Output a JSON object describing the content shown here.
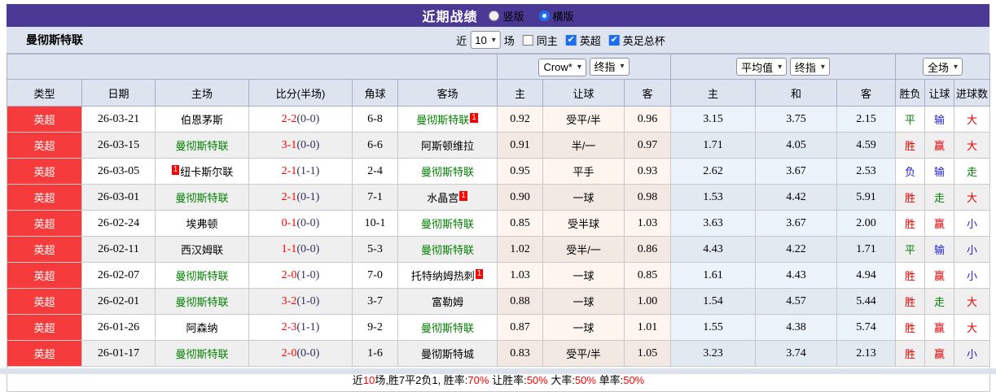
{
  "titlebar": {
    "title": "近期战绩",
    "radios": [
      {
        "label": "竖版",
        "checked": false
      },
      {
        "label": "横版",
        "checked": true
      }
    ]
  },
  "filterbar": {
    "team": "曼彻斯特联",
    "near_label": "近",
    "matches_value": "10",
    "matches_unit": "场",
    "checkboxes": [
      {
        "label": "同主",
        "checked": false
      },
      {
        "label": "英超",
        "checked": true
      },
      {
        "label": "英足总杯",
        "checked": true
      }
    ]
  },
  "dropdowns": {
    "asia_source": "Crow*",
    "asia_time": "终指",
    "euro_source": "平均值",
    "euro_time": "终指",
    "scope": "全场"
  },
  "columns": [
    "类型",
    "日期",
    "主场",
    "比分(半场)",
    "角球",
    "客场",
    "主",
    "让球",
    "客",
    "主",
    "和",
    "客",
    "胜负",
    "让球",
    "进球数"
  ],
  "rows": [
    {
      "league": "英超",
      "date": "26-03-21",
      "home": "伯恩茅斯",
      "home_green": false,
      "home_badge": "",
      "score": "2-2",
      "half": "(0-0)",
      "corner": "6-8",
      "away": "曼彻斯特联",
      "away_green": true,
      "away_badge": "1",
      "asia_home": "0.92",
      "asia_line": "受平/半",
      "asia_away": "0.96",
      "euro_home": "3.15",
      "euro_draw": "3.75",
      "euro_away": "2.15",
      "res_wdl": "平",
      "res_handicap": "输",
      "res_goals": "大"
    },
    {
      "league": "英超",
      "date": "26-03-15",
      "home": "曼彻斯特联",
      "home_green": true,
      "home_badge": "",
      "score": "3-1",
      "half": "(0-0)",
      "corner": "6-6",
      "away": "阿斯顿维拉",
      "away_green": false,
      "away_badge": "",
      "asia_home": "0.91",
      "asia_line": "半/一",
      "asia_away": "0.97",
      "euro_home": "1.71",
      "euro_draw": "4.05",
      "euro_away": "4.59",
      "res_wdl": "胜",
      "res_handicap": "赢",
      "res_goals": "大"
    },
    {
      "league": "英超",
      "date": "26-03-05",
      "home": "纽卡斯尔联",
      "home_green": false,
      "home_badge": "1",
      "score": "2-1",
      "half": "(1-1)",
      "corner": "2-4",
      "away": "曼彻斯特联",
      "away_green": true,
      "away_badge": "",
      "asia_home": "0.95",
      "asia_line": "平手",
      "asia_away": "0.93",
      "euro_home": "2.62",
      "euro_draw": "3.67",
      "euro_away": "2.53",
      "res_wdl": "负",
      "res_handicap": "输",
      "res_goals": "走"
    },
    {
      "league": "英超",
      "date": "26-03-01",
      "home": "曼彻斯特联",
      "home_green": true,
      "home_badge": "",
      "score": "2-1",
      "half": "(0-1)",
      "corner": "7-1",
      "away": "水晶宫",
      "away_green": false,
      "away_badge": "1",
      "asia_home": "0.90",
      "asia_line": "一球",
      "asia_away": "0.98",
      "euro_home": "1.53",
      "euro_draw": "4.42",
      "euro_away": "5.91",
      "res_wdl": "胜",
      "res_handicap": "走",
      "res_goals": "大"
    },
    {
      "league": "英超",
      "date": "26-02-24",
      "home": "埃弗顿",
      "home_green": false,
      "home_badge": "",
      "score": "0-1",
      "half": "(0-0)",
      "corner": "10-1",
      "away": "曼彻斯特联",
      "away_green": true,
      "away_badge": "",
      "asia_home": "0.85",
      "asia_line": "受半球",
      "asia_away": "1.03",
      "euro_home": "3.63",
      "euro_draw": "3.67",
      "euro_away": "2.00",
      "res_wdl": "胜",
      "res_handicap": "赢",
      "res_goals": "小"
    },
    {
      "league": "英超",
      "date": "26-02-11",
      "home": "西汉姆联",
      "home_green": false,
      "home_badge": "",
      "score": "1-1",
      "half": "(0-0)",
      "corner": "5-3",
      "away": "曼彻斯特联",
      "away_green": true,
      "away_badge": "",
      "asia_home": "1.02",
      "asia_line": "受半/一",
      "asia_away": "0.86",
      "euro_home": "4.43",
      "euro_draw": "4.22",
      "euro_away": "1.71",
      "res_wdl": "平",
      "res_handicap": "输",
      "res_goals": "小"
    },
    {
      "league": "英超",
      "date": "26-02-07",
      "home": "曼彻斯特联",
      "home_green": true,
      "home_badge": "",
      "score": "2-0",
      "half": "(1-0)",
      "corner": "7-0",
      "away": "托特纳姆热刺",
      "away_green": false,
      "away_badge": "1",
      "asia_home": "1.03",
      "asia_line": "一球",
      "asia_away": "0.85",
      "euro_home": "1.61",
      "euro_draw": "4.43",
      "euro_away": "4.94",
      "res_wdl": "胜",
      "res_handicap": "赢",
      "res_goals": "小"
    },
    {
      "league": "英超",
      "date": "26-02-01",
      "home": "曼彻斯特联",
      "home_green": true,
      "home_badge": "",
      "score": "3-2",
      "half": "(1-0)",
      "corner": "3-7",
      "away": "富勒姆",
      "away_green": false,
      "away_badge": "",
      "asia_home": "0.88",
      "asia_line": "一球",
      "asia_away": "1.00",
      "euro_home": "1.54",
      "euro_draw": "4.57",
      "euro_away": "5.44",
      "res_wdl": "胜",
      "res_handicap": "走",
      "res_goals": "大"
    },
    {
      "league": "英超",
      "date": "26-01-26",
      "home": "阿森纳",
      "home_green": false,
      "home_badge": "",
      "score": "2-3",
      "half": "(1-1)",
      "corner": "9-2",
      "away": "曼彻斯特联",
      "away_green": true,
      "away_badge": "",
      "asia_home": "0.87",
      "asia_line": "一球",
      "asia_away": "1.01",
      "euro_home": "1.55",
      "euro_draw": "4.38",
      "euro_away": "5.74",
      "res_wdl": "胜",
      "res_handicap": "赢",
      "res_goals": "大"
    },
    {
      "league": "英超",
      "date": "26-01-17",
      "home": "曼彻斯特联",
      "home_green": true,
      "home_badge": "",
      "score": "2-0",
      "half": "(0-0)",
      "corner": "1-6",
      "away": "曼彻斯特城",
      "away_green": false,
      "away_badge": "",
      "asia_home": "0.83",
      "asia_line": "受平/半",
      "asia_away": "1.05",
      "euro_home": "3.23",
      "euro_draw": "3.74",
      "euro_away": "2.13",
      "res_wdl": "胜",
      "res_handicap": "赢",
      "res_goals": "小"
    }
  ],
  "summary_segments": [
    {
      "text": "近",
      "red": false
    },
    {
      "text": "10",
      "red": true
    },
    {
      "text": "场,胜7平2负1, 胜率:",
      "red": false
    },
    {
      "text": "70%",
      "red": true
    },
    {
      "text": " 让胜率:",
      "red": false
    },
    {
      "text": "50%",
      "red": true
    },
    {
      "text": " 大率:",
      "red": false
    },
    {
      "text": "50%",
      "red": true
    },
    {
      "text": " 单率:",
      "red": false
    },
    {
      "text": "50%",
      "red": true
    }
  ],
  "colors": {
    "accent_purple": "#4a3a96",
    "league_red": "#f53b3b",
    "win_red": "#e60000",
    "draw_green": "#008000",
    "lose_blue": "#2222cc"
  }
}
